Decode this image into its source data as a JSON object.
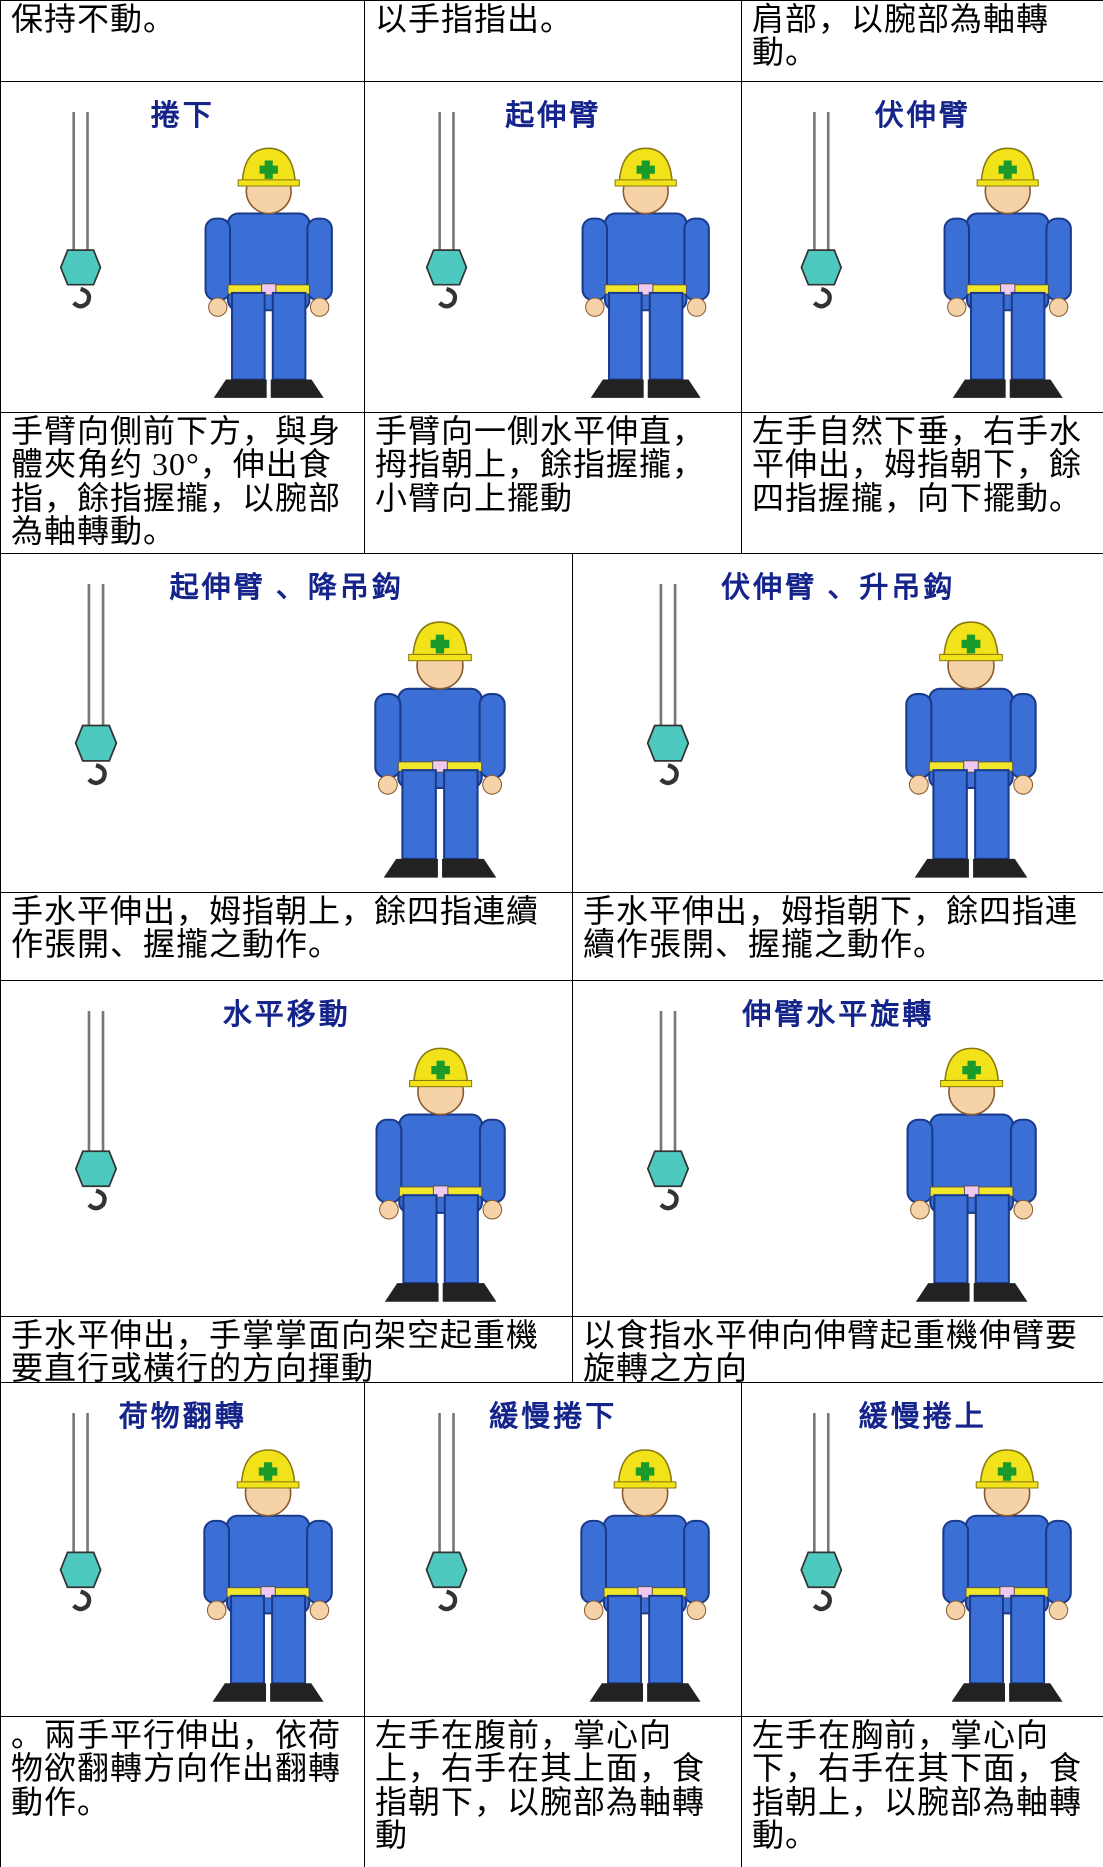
{
  "rows": [
    {
      "texts": [
        "保持不動。",
        "以手指指出。",
        "肩部，以腕部為軸轉動。"
      ]
    },
    {
      "titles": [
        "捲下",
        "起伸臂",
        "伏伸臂"
      ],
      "texts": [
        "手臂向側前下方，與身體夾角约 30°，伸出食指，餘指握攏，以腕部為軸轉動。",
        "手臂向一側水平伸直，拇指朝上，餘指握攏，小臂向上擺動",
        "左手自然下垂，右手水平伸出，姆指朝下，餘四指握攏，向下擺動。"
      ]
    },
    {
      "titles": [
        "起伸臂 、降吊鈎",
        "伏伸臂 、升吊鈎"
      ],
      "texts": [
        "手水平伸出，姆指朝上，餘四指連續作張開、握攏之動作。",
        "手水平伸出，姆指朝下，餘四指連續作張開、握攏之動作。"
      ]
    },
    {
      "titles": [
        "水平移動",
        "伸臂水平旋轉"
      ],
      "texts": [
        "手水平伸出，手掌掌面向架空起重機要直行或橫行的方向揮動",
        "以食指水平伸向伸臂起重機伸臂要旋轉之方向"
      ]
    },
    {
      "titles": [
        "荷物翻轉",
        "緩慢捲下",
        "緩慢捲上"
      ],
      "texts": [
        "。兩手平行伸出，依荷物欲翻轉方向作出翻轉動作。",
        "左手在腹前，掌心向上，右手在其上面，食指朝下，以腕部為軸轉動",
        "左手在胸前，掌心向下，右手在其下面，食指朝上，以腕部為軸轉動。"
      ]
    }
  ]
}
